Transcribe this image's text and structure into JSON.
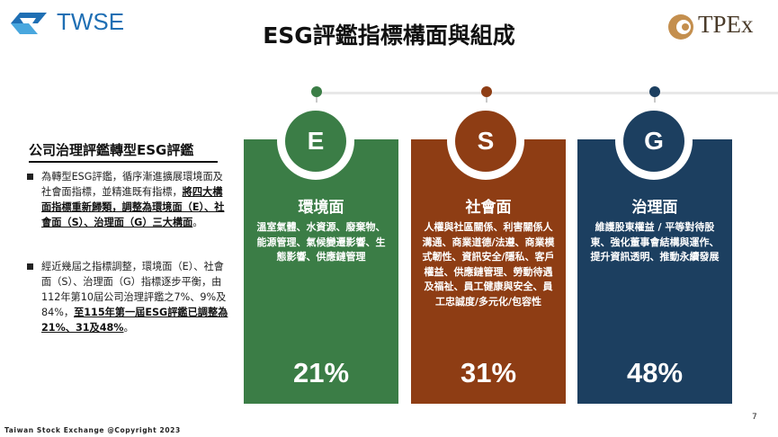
{
  "header": {
    "twse_logo_text": "TWSE",
    "title": "ESG評鑑指標構面與組成",
    "tpex_logo_text": "TPEx"
  },
  "left": {
    "title": "公司治理評鑑轉型ESG評鑑",
    "bullet1_plain": "為轉型ESG評鑑，循序漸進擴展環境面及社會面指標，並精進既有指標，",
    "bullet1_bold": "將四大構面指標重新歸類，調整為環境面（E）、社會面（S）、治理面（G）三大構面",
    "bullet1_end": "。",
    "bullet2_plain": "經近幾屆之指標調整，環境面（E）、社會面（S）、治理面（G）指標逐步平衡，由112年第10屆公司治理評鑑之7%、9%及84%，",
    "bullet2_bold": "至115年第一屆ESG評鑑已調整為21%、31及48%",
    "bullet2_end": "。"
  },
  "cards": [
    {
      "letter": "E",
      "name": "環境面",
      "desc": "溫室氣體、水資源、廢棄物、能源管理、氣候變遷影響、生態影響、供應鏈管理",
      "pct": "21%",
      "color": "#3b7d46"
    },
    {
      "letter": "S",
      "name": "社會面",
      "desc": "人權與社區關係、利害關係人溝通、商業道德/法遵、商業模式韌性、資訊安全/隱私、客戶權益、供應鏈管理、勞動待遇及福祉、員工健康與安全、員工忠誠度/多元化/包容性",
      "pct": "31%",
      "color": "#8e3d14"
    },
    {
      "letter": "G",
      "name": "治理面",
      "desc": "維護股東權益 / 平等對待股東、強化董事會結構與運作、提升資訊透明、推動永續發展",
      "pct": "48%",
      "color": "#1c3f60"
    }
  ],
  "footer": {
    "copyright": "Taiwan Stock Exchange @Copyright 2023",
    "page": "7"
  }
}
